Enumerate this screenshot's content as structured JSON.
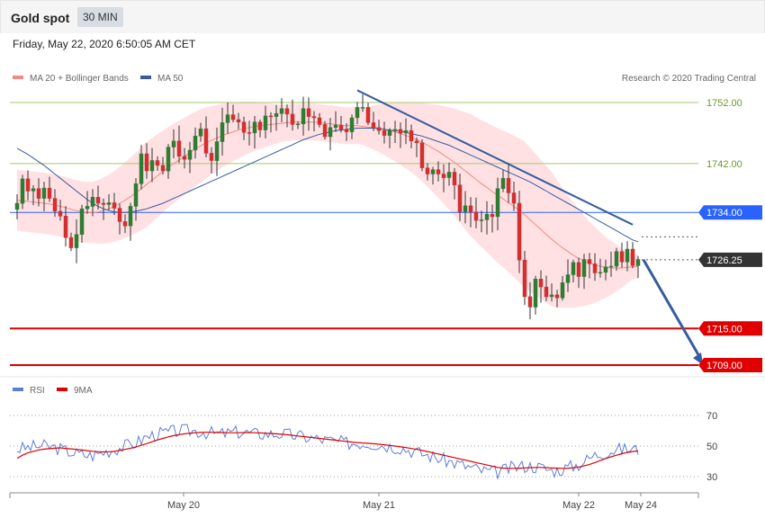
{
  "header": {
    "title": "Gold spot",
    "timeframe": "30 MIN"
  },
  "datetime": "Friday, May 22, 2020 6:50:05 AM CET",
  "legend": {
    "ma_bb": "MA 20 + Bollinger Bands",
    "ma50": "MA 50",
    "rsi": "RSI",
    "ma9": "9MA"
  },
  "copyright": "Research © 2020 Trading Central",
  "colors": {
    "up": "#2e7d32",
    "down": "#d32f2f",
    "support": "#e00000",
    "pivot": "#2962ff",
    "resistance": "#a5c96a",
    "trend": "#365c9e",
    "ma20": "#f28b82",
    "band": "#ffd6d9",
    "rsi": "#5b7fd6",
    "price_tag": "#333333"
  },
  "chart_data": [
    {
      "type": "candlestick",
      "ylim": [
        1700,
        1758
      ],
      "x_ticks": [
        "May 20",
        "May 21",
        "May 22",
        "May 24"
      ],
      "levels": [
        {
          "label": "1752.00",
          "value": 1752.0,
          "kind": "resistance"
        },
        {
          "label": "1742.00",
          "value": 1742.0,
          "kind": "resistance"
        },
        {
          "label": "1734.00",
          "value": 1734.0,
          "kind": "pivot"
        },
        {
          "label": "1726.25",
          "value": 1726.25,
          "kind": "last"
        },
        {
          "label": "1715.00",
          "value": 1715.0,
          "kind": "support"
        },
        {
          "label": "1709.00",
          "value": 1709.0,
          "kind": "support"
        }
      ],
      "trendline": [
        {
          "i": 63,
          "y": 1754
        },
        {
          "i": 114,
          "y": 1732
        }
      ],
      "forecast_arrow": [
        {
          "i": 116,
          "y": 1726.25
        },
        {
          "i": 126,
          "y": 1709
        }
      ],
      "close": [
        1735.5,
        1739.5,
        1737.5,
        1737.9,
        1736.3,
        1738.0,
        1736.3,
        1734.2,
        1733.4,
        1729.9,
        1728.2,
        1730.4,
        1734.6,
        1735.0,
        1736.5,
        1735.5,
        1735.3,
        1735.6,
        1734.7,
        1732.5,
        1731.8,
        1735.0,
        1738.7,
        1743.6,
        1740.8,
        1742.5,
        1741.7,
        1740.8,
        1744.7,
        1745.7,
        1743.2,
        1742.7,
        1744.2,
        1746.5,
        1747.7,
        1743.7,
        1742.5,
        1745.6,
        1748.7,
        1750.0,
        1749.2,
        1748.8,
        1747.1,
        1747.0,
        1748.8,
        1747.5,
        1749.8,
        1749.7,
        1750.2,
        1751.0,
        1750.1,
        1748.4,
        1748.5,
        1751.0,
        1749.7,
        1749.5,
        1748.4,
        1746.4,
        1747.9,
        1748.3,
        1747.6,
        1747.2,
        1749.5,
        1751.2,
        1751.2,
        1748.7,
        1747.9,
        1747.4,
        1746.6,
        1747.4,
        1747.6,
        1747.0,
        1747.4,
        1745.7,
        1745.4,
        1741.3,
        1740.3,
        1741.0,
        1740.3,
        1739.7,
        1740.6,
        1738.5,
        1734.1,
        1735.1,
        1734.1,
        1732.7,
        1732.8,
        1733.7,
        1733.3,
        1737.9,
        1739.6,
        1737.2,
        1735.5,
        1726.2,
        1720.2,
        1718.5,
        1723.1,
        1721.8,
        1720.2,
        1720.5,
        1720.0,
        1722.5,
        1723.8,
        1725.8,
        1723.5,
        1726.3,
        1725.6,
        1724.1,
        1724.2,
        1725.1,
        1725.2,
        1727.6,
        1725.9,
        1728.0,
        1725.3,
        1726.3
      ],
      "ma20": [
        1736.0,
        1735.9,
        1735.8,
        1735.7,
        1735.6,
        1735.5,
        1735.4,
        1735.2,
        1735.0,
        1734.8,
        1734.5,
        1734.3,
        1734.1,
        1734.0,
        1734.0,
        1734.1,
        1734.3,
        1734.6,
        1735.0,
        1735.5,
        1736.0,
        1736.6,
        1737.2,
        1737.9,
        1738.6,
        1739.3,
        1740.0,
        1740.7,
        1741.4,
        1742.0,
        1742.6,
        1743.2,
        1743.8,
        1744.4,
        1744.9,
        1745.4,
        1745.8,
        1746.2,
        1746.6,
        1746.9,
        1747.2,
        1747.5,
        1747.7,
        1747.9,
        1748.1,
        1748.2,
        1748.3,
        1748.4,
        1748.5,
        1748.6,
        1748.7,
        1748.8,
        1748.8,
        1748.8,
        1748.8,
        1748.8,
        1748.7,
        1748.6,
        1748.5,
        1748.4,
        1748.3,
        1748.2,
        1748.2,
        1748.2,
        1748.1,
        1748.0,
        1747.9,
        1747.8,
        1747.6,
        1747.4,
        1747.2,
        1746.9,
        1746.6,
        1746.3,
        1745.9,
        1745.5,
        1745.0,
        1744.5,
        1744.0,
        1743.4,
        1742.8,
        1742.2,
        1741.5,
        1740.8,
        1740.1,
        1739.4,
        1738.7,
        1738.1,
        1737.4,
        1736.8,
        1736.2,
        1735.6,
        1735.0,
        1734.3,
        1733.6,
        1732.8,
        1732.0,
        1731.2,
        1730.4,
        1729.6,
        1728.9,
        1728.2,
        1727.6,
        1727.0,
        1726.5,
        1726.1,
        1725.7,
        1725.4,
        1725.2,
        1725.0,
        1724.9,
        1724.9,
        1724.9,
        1725.0,
        1725.1,
        1725.2
      ],
      "band_width": [
        5.0,
        5.0,
        5.0,
        5.0,
        5.0,
        5.0,
        5.0,
        5.0,
        5.0,
        5.0,
        5.0,
        5.0,
        5.0,
        5.0,
        5.0,
        5.2,
        5.4,
        5.6,
        5.8,
        6.0,
        6.2,
        6.4,
        6.6,
        6.8,
        7.0,
        6.9,
        6.8,
        6.7,
        6.6,
        6.5,
        6.4,
        6.3,
        6.2,
        6.1,
        6.0,
        5.8,
        5.6,
        5.4,
        5.2,
        5.0,
        4.8,
        4.6,
        4.4,
        4.2,
        4.0,
        3.8,
        3.6,
        3.4,
        3.2,
        3.0,
        3.0,
        3.0,
        3.0,
        3.0,
        3.0,
        3.0,
        3.0,
        3.0,
        3.0,
        3.0,
        3.0,
        3.0,
        3.0,
        3.0,
        3.0,
        3.3,
        3.6,
        3.9,
        4.2,
        4.5,
        4.8,
        5.1,
        5.4,
        5.7,
        6.0,
        6.4,
        6.8,
        7.2,
        7.6,
        8.0,
        8.4,
        8.8,
        9.2,
        9.6,
        10.0,
        10.2,
        10.4,
        10.6,
        10.8,
        11.0,
        11.2,
        11.4,
        11.6,
        11.8,
        12.0,
        11.8,
        11.6,
        11.4,
        11.2,
        11.0,
        10.4,
        9.8,
        9.2,
        8.6,
        8.0,
        7.4,
        6.8,
        6.2,
        5.6,
        5.0,
        4.4,
        3.8,
        3.2,
        2.6,
        2.0,
        2.0
      ],
      "ma50": [
        1744.5,
        1744.0,
        1743.5,
        1742.9,
        1742.3,
        1741.7,
        1741.0,
        1740.3,
        1739.6,
        1738.9,
        1738.2,
        1737.5,
        1736.8,
        1736.1,
        1735.5,
        1735.0,
        1734.6,
        1734.3,
        1734.1,
        1734.0,
        1734.0,
        1734.1,
        1734.2,
        1734.4,
        1734.6,
        1734.9,
        1735.2,
        1735.5,
        1735.9,
        1736.3,
        1736.7,
        1737.1,
        1737.5,
        1737.9,
        1738.3,
        1738.7,
        1739.1,
        1739.5,
        1739.9,
        1740.3,
        1740.7,
        1741.1,
        1741.5,
        1741.9,
        1742.3,
        1742.7,
        1743.1,
        1743.5,
        1743.9,
        1744.3,
        1744.7,
        1745.1,
        1745.5,
        1745.9,
        1746.2,
        1746.5,
        1746.8,
        1747.0,
        1747.2,
        1747.4,
        1747.5,
        1747.6,
        1747.7,
        1747.8,
        1747.8,
        1747.8,
        1747.8,
        1747.7,
        1747.6,
        1747.5,
        1747.4,
        1747.3,
        1747.1,
        1746.9,
        1746.7,
        1746.5,
        1746.2,
        1745.9,
        1745.6,
        1745.3,
        1745.0,
        1744.6,
        1744.2,
        1743.8,
        1743.4,
        1743.0,
        1742.6,
        1742.2,
        1741.8,
        1741.4,
        1741.0,
        1740.6,
        1740.2,
        1739.8,
        1739.4,
        1739.0,
        1738.5,
        1738.0,
        1737.5,
        1737.0,
        1736.5,
        1736.0,
        1735.5,
        1735.0,
        1734.5,
        1734.0,
        1733.5,
        1733.0,
        1732.5,
        1732.0,
        1731.5,
        1731.0,
        1730.5,
        1730.0,
        1729.5,
        1729.2
      ]
    },
    {
      "type": "line",
      "ylim": [
        20,
        80
      ],
      "y_ticks": [
        70,
        50,
        30
      ],
      "series": [
        {
          "name": "RSI",
          "values": [
            48.0,
            48.5,
            49.0,
            49.5,
            50.0,
            50.0,
            49.5,
            49.0,
            48.0,
            47.0,
            46.0,
            45.0,
            44.5,
            44.0,
            44.0,
            45.0,
            46.0,
            47.0,
            48.0,
            49.0,
            50.0,
            51.0,
            52.0,
            54.0,
            56.0,
            57.0,
            58.0,
            58.5,
            59.0,
            59.5,
            60.0,
            60.0,
            60.0,
            60.0,
            59.5,
            59.0,
            58.5,
            58.0,
            58.0,
            58.5,
            59.0,
            59.0,
            59.0,
            58.5,
            58.0,
            58.0,
            58.0,
            58.0,
            58.0,
            58.0,
            57.5,
            57.0,
            56.5,
            56.0,
            55.5,
            55.0,
            54.5,
            54.0,
            53.5,
            53.0,
            52.5,
            52.0,
            52.0,
            52.0,
            52.0,
            52.0,
            51.5,
            51.0,
            50.5,
            50.0,
            49.5,
            49.0,
            48.0,
            47.0,
            46.0,
            45.0,
            44.0,
            43.0,
            42.0,
            41.0,
            40.0,
            39.0,
            38.0,
            37.0,
            36.0,
            35.0,
            34.0,
            33.5,
            33.0,
            33.0,
            34.0,
            35.0,
            36.0,
            36.5,
            37.0,
            37.0,
            36.5,
            36.0,
            35.0,
            34.0,
            34.0,
            35.0,
            36.0,
            37.0,
            38.0,
            40.0,
            42.0,
            44.0,
            45.0,
            46.0,
            47.0,
            47.5,
            48.0,
            48.0,
            48.0,
            47.5
          ]
        },
        {
          "name": "9MA",
          "values": [
            42.0,
            44.0,
            45.5,
            46.5,
            47.5,
            48.0,
            48.3,
            48.6,
            48.8,
            48.5,
            48.2,
            47.8,
            47.4,
            47.0,
            46.6,
            46.3,
            46.2,
            46.3,
            46.6,
            47.1,
            47.8,
            48.6,
            49.5,
            50.5,
            51.6,
            52.8,
            54.0,
            55.0,
            56.0,
            56.8,
            57.5,
            58.0,
            58.4,
            58.7,
            58.9,
            59.0,
            59.0,
            58.9,
            58.8,
            58.7,
            58.7,
            58.7,
            58.8,
            58.8,
            58.7,
            58.6,
            58.4,
            58.2,
            58.0,
            57.7,
            57.4,
            57.0,
            56.6,
            56.2,
            55.8,
            55.4,
            55.0,
            54.6,
            54.2,
            53.8,
            53.4,
            53.0,
            52.6,
            52.3,
            52.0,
            51.8,
            51.5,
            51.2,
            50.8,
            50.4,
            50.0,
            49.5,
            49.0,
            48.4,
            47.8,
            47.1,
            46.4,
            45.6,
            44.8,
            44.0,
            43.2,
            42.4,
            41.6,
            40.8,
            40.0,
            39.2,
            38.4,
            37.6,
            36.8,
            36.0,
            35.6,
            35.4,
            35.4,
            35.5,
            35.7,
            35.9,
            36.0,
            36.0,
            35.9,
            35.7,
            35.5,
            35.4,
            35.5,
            35.8,
            36.3,
            37.0,
            38.0,
            39.2,
            40.5,
            41.8,
            43.0,
            44.0,
            45.0,
            45.8,
            46.4,
            46.8
          ]
        }
      ]
    }
  ]
}
